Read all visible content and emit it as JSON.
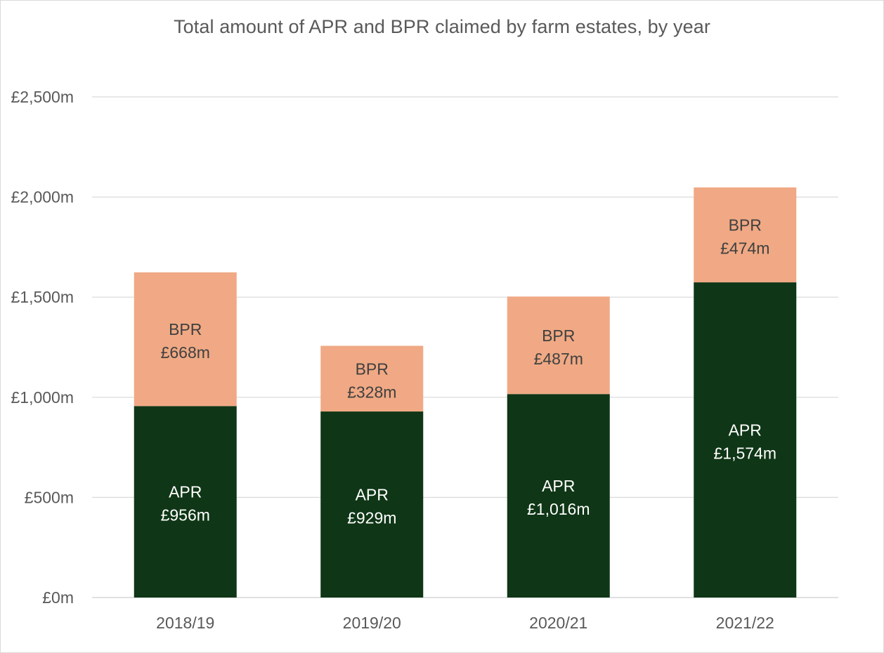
{
  "chart_data": {
    "type": "bar",
    "stacked": true,
    "title": "Total amount of APR and BPR claimed by farm estates, by year",
    "categories": [
      "2018/19",
      "2019/20",
      "2020/21",
      "2021/22"
    ],
    "series": [
      {
        "name": "APR",
        "values": [
          956,
          929,
          1016,
          1574
        ],
        "labels": [
          "£956m",
          "£929m",
          "£1,016m",
          "£1,574m"
        ],
        "color": "#0f3616",
        "label_color": "#ffffff"
      },
      {
        "name": "BPR",
        "values": [
          668,
          328,
          487,
          474
        ],
        "labels": [
          "£668m",
          "£328m",
          "£487m",
          "£474m"
        ],
        "color": "#f0a984",
        "label_color": "#404040"
      }
    ],
    "y_ticks": [
      {
        "value": 0,
        "label": "£0m"
      },
      {
        "value": 500,
        "label": "£500m"
      },
      {
        "value": 1000,
        "label": "£1,000m"
      },
      {
        "value": 1500,
        "label": "£1,500m"
      },
      {
        "value": 2000,
        "label": "£2,000m"
      },
      {
        "value": 2500,
        "label": "£2,500m"
      }
    ],
    "ylim": [
      0,
      2500
    ],
    "grid": true,
    "legend": "none",
    "gridline_color": "#d9d9d9",
    "axis_label_color": "#595959"
  }
}
